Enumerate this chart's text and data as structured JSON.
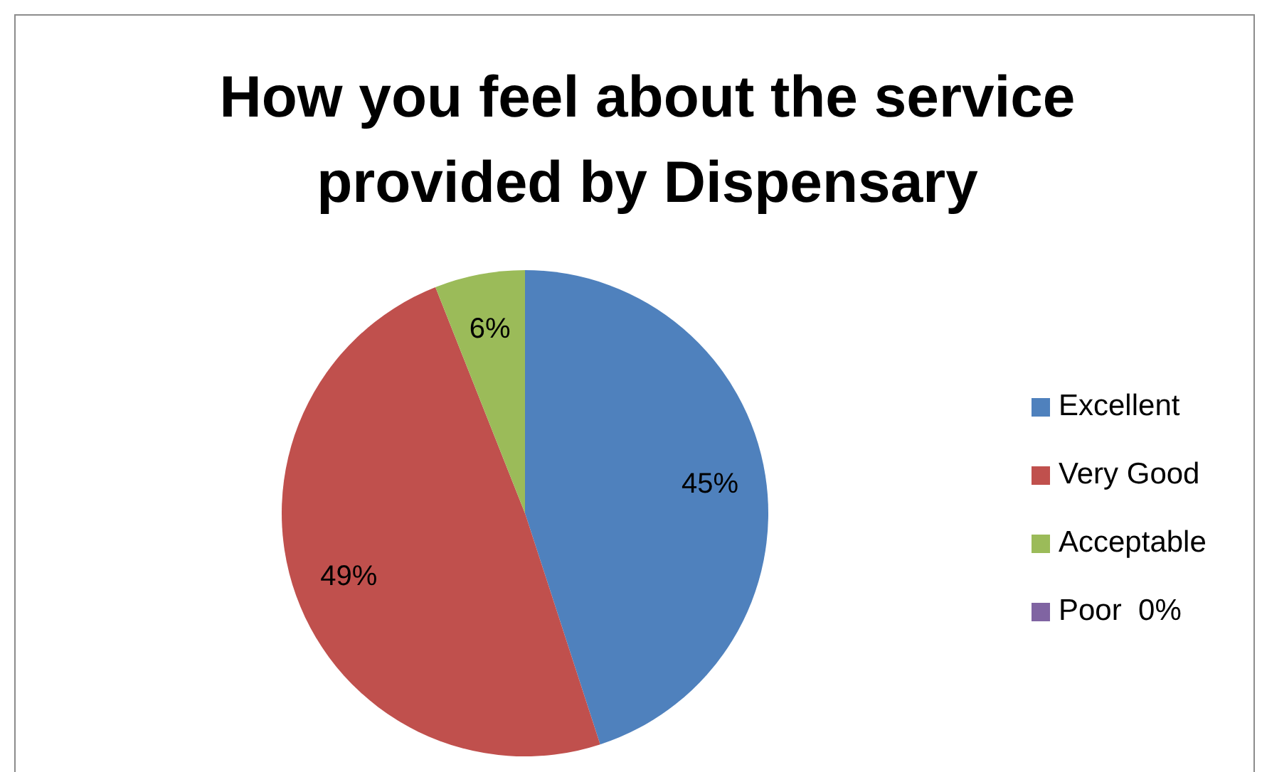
{
  "chart_data": {
    "type": "pie",
    "title": "How you feel about the service provided by Dispensary",
    "categories": [
      "Excellent",
      "Very Good",
      "Acceptable",
      "Poor  0%"
    ],
    "values": [
      45,
      49,
      6,
      0
    ],
    "colors": [
      "#4f81bd",
      "#c0504d",
      "#9bbb59",
      "#8064a2"
    ],
    "value_labels": [
      "45%",
      "49%",
      "6%",
      null
    ],
    "legend": "right"
  }
}
